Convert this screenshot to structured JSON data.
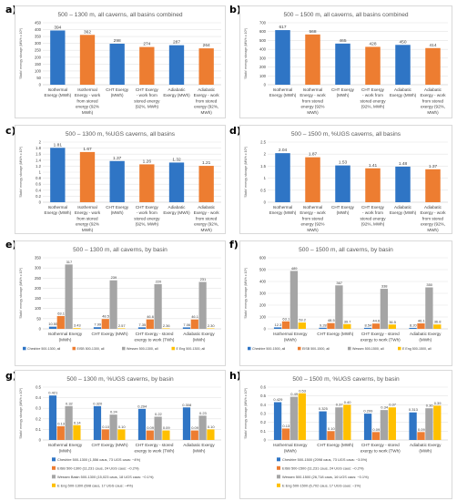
{
  "panels": [
    "a)",
    "b)",
    "c)",
    "d)",
    "e)",
    "f)",
    "g)",
    "h)"
  ],
  "colors": {
    "blue": "#2f75c5",
    "orange": "#ed7d31",
    "gray": "#a5a5a5",
    "yellow": "#ffc000"
  },
  "chart_data": [
    {
      "type": "bar",
      "title": "500 – 1300 m, all caverns, all basins combined",
      "ylabel": "'Static' energy storage (MWh x 10⁹)",
      "ylim": [
        0,
        450
      ],
      "yticks": [
        0,
        50,
        100,
        150,
        200,
        250,
        300,
        350,
        400,
        450
      ],
      "categories": [
        [
          "Isothermal",
          "Energy (MWh)"
        ],
        [
          "Isothermal",
          "Energy - work",
          "from stored",
          "energy (92%",
          "MWh)"
        ],
        [
          "CHT Exergy",
          "(MWh)"
        ],
        [
          "CHT Exergy",
          "- work from",
          "stored energy",
          "(92%, MWh)"
        ],
        [
          "Adiabatic",
          "Exergy (MWh)"
        ],
        [
          "Adiabatic",
          "Exergy - work",
          "from stored",
          "exergy (92%,",
          "MWh)"
        ]
      ],
      "values": [
        394,
        362,
        298,
        274,
        287,
        264
      ],
      "value_labels": [
        "394",
        "362",
        "298",
        "274",
        "287",
        "264"
      ],
      "bar_colors": [
        "#2f75c5",
        "#ed7d31",
        "#2f75c5",
        "#ed7d31",
        "#2f75c5",
        "#ed7d31"
      ]
    },
    {
      "type": "bar",
      "title": "500 – 1500 m, all caverns, all basins combined",
      "ylabel": "'Static' energy storage (MWh x 10⁹)",
      "ylim": [
        0,
        700
      ],
      "yticks": [
        0,
        100,
        200,
        300,
        400,
        500,
        600,
        700
      ],
      "categories": [
        [
          "Isothermal",
          "Energy (MWh)"
        ],
        [
          "Isothermal",
          "Energy - work",
          "from stored",
          "energy (92%",
          "MWh)"
        ],
        [
          "CHT Exergy",
          "(MWh)"
        ],
        [
          "CHT Exergy",
          "- work from",
          "stored energy",
          "(92%, MWh)"
        ],
        [
          "Adiabatic",
          "Exergy (MWh)"
        ],
        [
          "Adiabatic",
          "Exergy - work",
          "from stored",
          "exergy (92%,",
          "MWh)"
        ]
      ],
      "values": [
        617,
        568,
        465,
        428,
        450,
        414
      ],
      "value_labels": [
        "617",
        "568",
        "465",
        "428",
        "450",
        "414"
      ],
      "bar_colors": [
        "#2f75c5",
        "#ed7d31",
        "#2f75c5",
        "#ed7d31",
        "#2f75c5",
        "#ed7d31"
      ]
    },
    {
      "type": "bar",
      "title": "500 – 1300 m, %UGS caverns, all basins",
      "ylabel": "'Static' energy storage (MWh x 10⁹)",
      "ylim": [
        0,
        2
      ],
      "yticks": [
        0,
        0.2,
        0.4,
        0.6,
        0.8,
        1,
        1.2,
        1.4,
        1.6,
        1.8,
        2
      ],
      "ytick_labels": [
        "0",
        "0.2",
        "0.4",
        "0.6",
        "0.8",
        "1",
        "1.2",
        "1.4",
        "1.6",
        "1.8",
        "2"
      ],
      "categories": [
        [
          "Isothermal",
          "Energy (MWh)"
        ],
        [
          "Isothermal",
          "Energy - work",
          "from stored",
          "energy (92%",
          "MWh)"
        ],
        [
          "CHT Exergy",
          "(MWh)"
        ],
        [
          "CHT Exergy",
          "- work from",
          "stored energy",
          "(92%, MWh)"
        ],
        [
          "Adiabatic",
          "Exergy (MWh)"
        ],
        [
          "Adiabatic",
          "Exergy - work",
          "from stored",
          "exergy (92%,",
          "MWh)"
        ]
      ],
      "values": [
        1.81,
        1.67,
        1.37,
        1.26,
        1.32,
        1.21
      ],
      "value_labels": [
        "1.81",
        "1.67",
        "1.37",
        "1.26",
        "1.32",
        "1.21"
      ],
      "bar_colors": [
        "#2f75c5",
        "#ed7d31",
        "#2f75c5",
        "#ed7d31",
        "#2f75c5",
        "#ed7d31"
      ]
    },
    {
      "type": "bar",
      "title": "500 – 1500 m, %UGS caverns, all basins",
      "ylabel": "'Static' energy storage (MWh x 10⁹)",
      "ylim": [
        0,
        2.5
      ],
      "yticks": [
        0,
        0.5,
        1,
        1.5,
        2,
        2.5
      ],
      "ytick_labels": [
        "0",
        "0.5",
        "1",
        "1.5",
        "2",
        "2.5"
      ],
      "categories": [
        [
          "Isothermal",
          "Energy (MWh)"
        ],
        [
          "Isothermal",
          "Energy - work",
          "from stored",
          "energy (92%",
          "MWh)"
        ],
        [
          "CHT Exergy",
          "(MWh)"
        ],
        [
          "CHT Exergy",
          "- work from",
          "stored energy",
          "(92%, MWh)"
        ],
        [
          "Adiabatic",
          "Exergy (MWh)"
        ],
        [
          "Adiabatic",
          "Exergy - work",
          "from stored",
          "exergy (92%,",
          "MWh)"
        ]
      ],
      "values": [
        2.04,
        1.87,
        1.53,
        1.41,
        1.48,
        1.37
      ],
      "value_labels": [
        "2.04",
        "1.87",
        "1.53",
        "1.41",
        "1.48",
        "1.37"
      ],
      "bar_colors": [
        "#2f75c5",
        "#ed7d31",
        "#2f75c5",
        "#ed7d31",
        "#2f75c5",
        "#ed7d31"
      ]
    },
    {
      "type": "bar",
      "title": "500 – 1300 m, all caverns, by basin",
      "ylabel": "'Static' energy storage (MWh x 10⁹)",
      "ylim": [
        0,
        350
      ],
      "yticks": [
        0,
        50,
        100,
        150,
        200,
        250,
        300,
        350
      ],
      "categories": [
        [
          "Isothermal Energy",
          "(MWh)"
        ],
        [
          "CHT Exergy (MWh)"
        ],
        [
          "CHT Exergy - stored",
          "exergy to work (TWh)"
        ],
        [
          "Adiabatic Exergy",
          "(MWh)"
        ]
      ],
      "series": [
        {
          "name": "Cheshire 500-1300, all",
          "values": [
            10.55,
            7.99,
            7.35,
            7.06
          ],
          "labels": [
            "10.55",
            "7.99",
            "7.35",
            "7.06"
          ]
        },
        {
          "name": "EISB 500-1300, all",
          "values": [
            63.1,
            48.5,
            46.6,
            46.1
          ],
          "labels": [
            "63.1",
            "48.5",
            "46.6",
            "46.1"
          ]
        },
        {
          "name": "Wessex 500-1300, all",
          "values": [
            317,
            239,
            220,
            231
          ],
          "labels": [
            "317",
            "239",
            "220",
            "231"
          ]
        },
        {
          "name": "E Eng 500-1300, all",
          "values": [
            3.43,
            2.57,
            2.36,
            2.3
          ],
          "labels": [
            "3.43",
            "2.57",
            "2.36",
            "2.30"
          ]
        }
      ]
    },
    {
      "type": "bar",
      "title": "500 – 1500 m, all caverns, by basin",
      "ylabel": "'Static' energy storage (MWh x 10⁹)",
      "ylim": [
        0,
        600
      ],
      "yticks": [
        0,
        100,
        200,
        300,
        400,
        500,
        600
      ],
      "categories": [
        [
          "Isothermal Energy",
          "(MWh)"
        ],
        [
          "CHT Exergy (MWh)"
        ],
        [
          "CHT Exergy - stored",
          "exergy to work (TWh)"
        ],
        [
          "Adiabatic Exergy",
          "(MWh)"
        ]
      ],
      "series": [
        {
          "name": "Cheshire 500-1500, all",
          "values": [
            12.3,
            9.28,
            8.54,
            8.2
          ],
          "labels": [
            "12.3",
            "9.28",
            "8.54",
            "8.20"
          ]
        },
        {
          "name": "EISB 500-1500, all",
          "values": [
            63.1,
            48.5,
            44.6,
            46.1
          ],
          "labels": [
            "63.1",
            "48.5",
            "44.6",
            "46.1"
          ]
        },
        {
          "name": "Wessex 500-1500, all",
          "values": [
            489,
            367,
            338,
            350
          ],
          "labels": [
            "489",
            "367",
            "338",
            "350"
          ]
        },
        {
          "name": "E Eng 500-1500, all",
          "values": [
            53.2,
            39.7,
            36.5,
            36.8
          ],
          "labels": [
            "53.2",
            "39.7",
            "36.5",
            "36.8"
          ]
        }
      ]
    },
    {
      "type": "bar",
      "title": "500 – 1300 m, %UGS caverns, by basin",
      "ylabel": "'Static' energy storage (MWh x 10⁹)",
      "ylim": [
        0,
        0.5
      ],
      "yticks": [
        0,
        0.1,
        0.2,
        0.3,
        0.4,
        0.5
      ],
      "ytick_labels": [
        "0",
        "0.1",
        "0.2",
        "0.3",
        "0.4",
        "0.5"
      ],
      "categories": [
        [
          "Isothermal Energy",
          "(MWh)"
        ],
        [
          "CHT Exergy (MWh)"
        ],
        [
          "CHT Exergy - stored",
          "exergy to work (TWh)"
        ],
        [
          "Adiabatic Exergy",
          "(MWh)"
        ]
      ],
      "series": [
        {
          "name": "Cheshire 500-1300 (1,556 caus, 73 UGS caus: ~4%)",
          "values": [
            0.421,
            0.32,
            0.294,
            0.308
          ],
          "labels": [
            "0.421",
            "0.320",
            "0.294",
            "0.308"
          ]
        },
        {
          "name": "EISB 500-1300 (11,231 caus, 24 UGS caus: ~0.2%)",
          "values": [
            0.13,
            0.1,
            0.09,
            0.09
          ],
          "labels": [
            "0.13",
            "0.10",
            "0.09",
            "0.09"
          ]
        },
        {
          "name": "Wessex Basin 500-1300 (15,023 caus, 18 UGS caus: ~0.1%)",
          "values": [
            0.32,
            0.24,
            0.22,
            0.23
          ],
          "labels": [
            "0.32",
            "0.24",
            "0.22",
            "0.23"
          ]
        },
        {
          "name": "E Eng 500-1300 (698 caus, 17 UGS caus: ~4%)",
          "values": [
            0.14,
            0.1,
            0.09,
            0.1
          ],
          "labels": [
            "0.14",
            "0.10",
            "0.09",
            "0.10"
          ]
        }
      ]
    },
    {
      "type": "bar",
      "title": "500 – 1500 m, %UGS caverns, by basin",
      "ylabel": "'Static' energy storage (MWh x 10⁹)",
      "ylim": [
        0,
        0.6
      ],
      "yticks": [
        0,
        0.1,
        0.2,
        0.3,
        0.4,
        0.5,
        0.6
      ],
      "ytick_labels": [
        "0",
        "0.1",
        "0.2",
        "0.3",
        "0.4",
        "0.5",
        "0.6"
      ],
      "categories": [
        [
          "Isothermal Energy",
          "(MWh)"
        ],
        [
          "CHT Exergy (MWh)"
        ],
        [
          "CHT Exergy - stored",
          "exergy to work (TWh)"
        ],
        [
          "Adiabatic Exergy",
          "(MWh)"
        ]
      ],
      "series": [
        {
          "name": "Cheshire 500-1500 (2098 caus, 73 UGS caus: ~3.5%)",
          "values": [
            0.429,
            0.325,
            0.299,
            0.313
          ],
          "labels": [
            "0.429",
            "0.325",
            "0.299",
            "0.313"
          ]
        },
        {
          "name": "EISB 500-1500 (11,231 caus, 24 UGS caus: ~0.2%)",
          "values": [
            0.13,
            0.1,
            0.09,
            0.09
          ],
          "labels": [
            "0.13",
            "0.10",
            "0.09",
            "0.09"
          ]
        },
        {
          "name": "Wessex 500-1500 (26,718 caus, 16 UGS caus: ~0.1%)",
          "values": [
            0.49,
            0.37,
            0.34,
            0.36
          ],
          "labels": [
            "0.49",
            "0.37",
            "0.34",
            "0.36"
          ]
        },
        {
          "name": "E Eng 500-1500 (6,702 caus, 17 UGS caus: ~1%)",
          "values": [
            0.53,
            0.4,
            0.37,
            0.39
          ],
          "labels": [
            "0.53",
            "0.40",
            "0.37",
            "0.39"
          ]
        }
      ]
    }
  ]
}
